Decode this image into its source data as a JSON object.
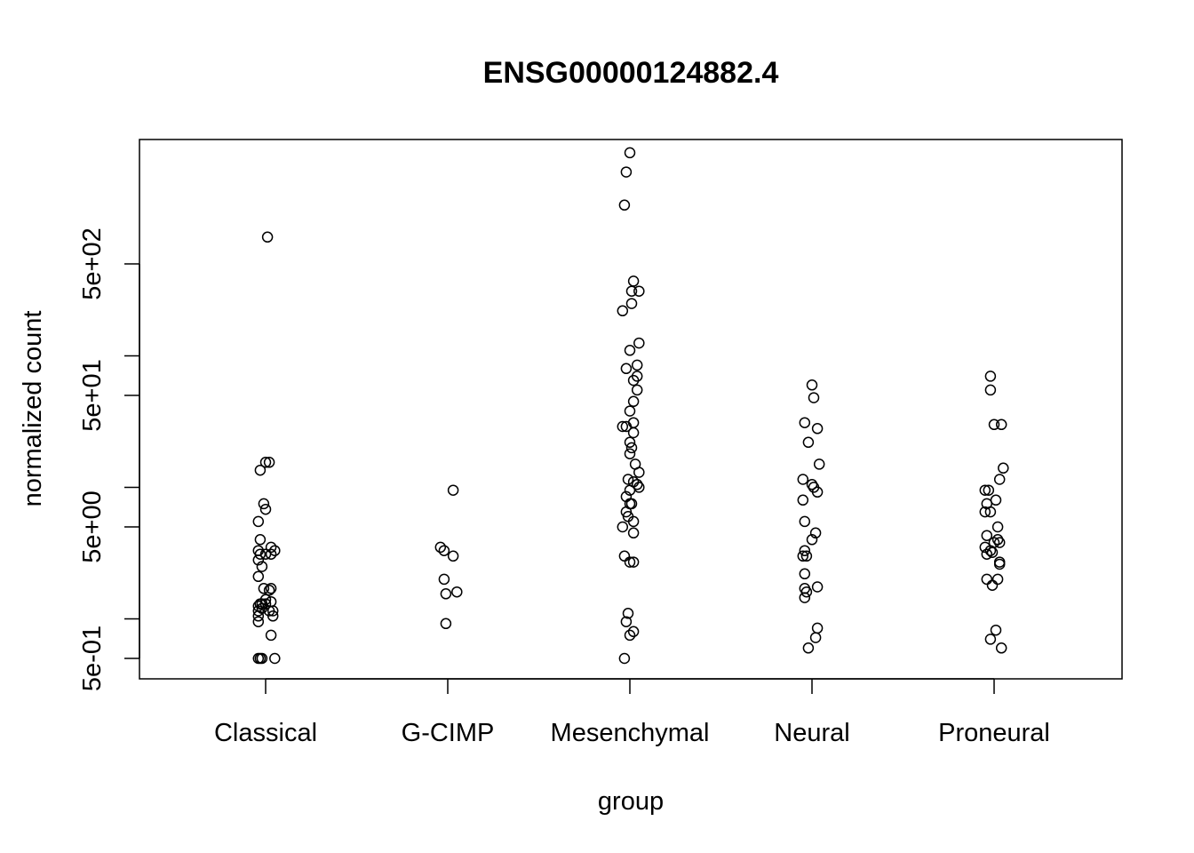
{
  "chart_data": {
    "type": "scatter",
    "title": "ENSG00000124882.4",
    "xlabel": "group",
    "ylabel": "normalized count",
    "categories": [
      "Classical",
      "G-CIMP",
      "Mesenchymal",
      "Neural",
      "Proneural"
    ],
    "y_scale": "log",
    "ylim": [
      0.4,
      4000
    ],
    "y_ticks": [
      0.5,
      5,
      50,
      500
    ],
    "y_tick_labels": [
      "5e-01",
      "5e+00",
      "5e+01",
      "5e+02"
    ],
    "grid": false,
    "legend": "none",
    "marker": "open-circle",
    "series": [
      {
        "category": "Classical",
        "points": [
          {
            "x": 0.01,
            "y": 800
          },
          {
            "x": 0.0,
            "y": 15.5
          },
          {
            "x": 0.02,
            "y": 15.5
          },
          {
            "x": -0.03,
            "y": 13.5
          },
          {
            "x": -0.01,
            "y": 7.5
          },
          {
            "x": 0.0,
            "y": 6.8
          },
          {
            "x": -0.04,
            "y": 5.5
          },
          {
            "x": -0.03,
            "y": 4.0
          },
          {
            "x": 0.03,
            "y": 3.5
          },
          {
            "x": -0.04,
            "y": 3.3
          },
          {
            "x": 0.05,
            "y": 3.3
          },
          {
            "x": -0.03,
            "y": 3.1
          },
          {
            "x": 0.0,
            "y": 3.1
          },
          {
            "x": 0.03,
            "y": 3.1
          },
          {
            "x": -0.04,
            "y": 2.8
          },
          {
            "x": -0.02,
            "y": 2.5
          },
          {
            "x": -0.04,
            "y": 2.1
          },
          {
            "x": -0.01,
            "y": 1.7
          },
          {
            "x": 0.02,
            "y": 1.65
          },
          {
            "x": 0.03,
            "y": 1.7
          },
          {
            "x": -0.03,
            "y": 1.3
          },
          {
            "x": -0.02,
            "y": 1.3
          },
          {
            "x": 0.0,
            "y": 1.3
          },
          {
            "x": -0.04,
            "y": 1.25
          },
          {
            "x": 0.03,
            "y": 1.35
          },
          {
            "x": 0.0,
            "y": 1.4
          },
          {
            "x": -0.02,
            "y": 1.2
          },
          {
            "x": 0.04,
            "y": 1.15
          },
          {
            "x": -0.04,
            "y": 1.15
          },
          {
            "x": 0.02,
            "y": 1.15
          },
          {
            "x": -0.04,
            "y": 1.05
          },
          {
            "x": 0.04,
            "y": 1.05
          },
          {
            "x": -0.04,
            "y": 0.95
          },
          {
            "x": 0.03,
            "y": 0.75
          },
          {
            "x": -0.04,
            "y": 0.5
          },
          {
            "x": -0.03,
            "y": 0.5
          },
          {
            "x": -0.02,
            "y": 0.5
          },
          {
            "x": 0.05,
            "y": 0.5
          }
        ]
      },
      {
        "category": "G-CIMP",
        "points": [
          {
            "x": 0.03,
            "y": 9.5
          },
          {
            "x": -0.04,
            "y": 3.5
          },
          {
            "x": -0.02,
            "y": 3.3
          },
          {
            "x": 0.03,
            "y": 3.0
          },
          {
            "x": -0.02,
            "y": 2.0
          },
          {
            "x": 0.05,
            "y": 1.6
          },
          {
            "x": -0.01,
            "y": 1.55
          },
          {
            "x": -0.01,
            "y": 0.92
          }
        ]
      },
      {
        "category": "Mesenchymal",
        "points": [
          {
            "x": 0.0,
            "y": 3500
          },
          {
            "x": -0.02,
            "y": 2500
          },
          {
            "x": -0.03,
            "y": 1400
          },
          {
            "x": 0.02,
            "y": 370
          },
          {
            "x": 0.05,
            "y": 310
          },
          {
            "x": 0.01,
            "y": 310
          },
          {
            "x": 0.01,
            "y": 250
          },
          {
            "x": -0.04,
            "y": 220
          },
          {
            "x": 0.05,
            "y": 125
          },
          {
            "x": 0.0,
            "y": 110
          },
          {
            "x": 0.04,
            "y": 85
          },
          {
            "x": -0.02,
            "y": 80
          },
          {
            "x": 0.04,
            "y": 70
          },
          {
            "x": 0.02,
            "y": 65
          },
          {
            "x": 0.04,
            "y": 55
          },
          {
            "x": 0.02,
            "y": 45
          },
          {
            "x": 0.0,
            "y": 38
          },
          {
            "x": 0.02,
            "y": 31
          },
          {
            "x": -0.04,
            "y": 29
          },
          {
            "x": -0.02,
            "y": 29
          },
          {
            "x": 0.02,
            "y": 26
          },
          {
            "x": 0.0,
            "y": 22
          },
          {
            "x": 0.01,
            "y": 20
          },
          {
            "x": 0.0,
            "y": 18
          },
          {
            "x": 0.03,
            "y": 15
          },
          {
            "x": 0.05,
            "y": 13
          },
          {
            "x": -0.01,
            "y": 11.5
          },
          {
            "x": 0.02,
            "y": 11
          },
          {
            "x": 0.04,
            "y": 10.5
          },
          {
            "x": 0.05,
            "y": 10
          },
          {
            "x": 0.0,
            "y": 9.5
          },
          {
            "x": -0.02,
            "y": 8.5
          },
          {
            "x": 0.01,
            "y": 7.5
          },
          {
            "x": 0.0,
            "y": 7.5
          },
          {
            "x": -0.02,
            "y": 6.5
          },
          {
            "x": -0.01,
            "y": 6.0
          },
          {
            "x": 0.02,
            "y": 5.5
          },
          {
            "x": -0.04,
            "y": 5.0
          },
          {
            "x": 0.02,
            "y": 4.5
          },
          {
            "x": -0.03,
            "y": 3.0
          },
          {
            "x": 0.0,
            "y": 2.7
          },
          {
            "x": 0.02,
            "y": 2.7
          },
          {
            "x": -0.01,
            "y": 1.1
          },
          {
            "x": -0.02,
            "y": 0.95
          },
          {
            "x": 0.02,
            "y": 0.8
          },
          {
            "x": 0.0,
            "y": 0.75
          },
          {
            "x": -0.03,
            "y": 0.5
          }
        ]
      },
      {
        "category": "Neural",
        "points": [
          {
            "x": 0.0,
            "y": 60
          },
          {
            "x": 0.01,
            "y": 48
          },
          {
            "x": -0.04,
            "y": 31
          },
          {
            "x": 0.03,
            "y": 28
          },
          {
            "x": -0.02,
            "y": 22
          },
          {
            "x": 0.04,
            "y": 15
          },
          {
            "x": -0.05,
            "y": 11.5
          },
          {
            "x": 0.0,
            "y": 10.5
          },
          {
            "x": 0.01,
            "y": 10
          },
          {
            "x": 0.03,
            "y": 9.2
          },
          {
            "x": -0.05,
            "y": 8.0
          },
          {
            "x": -0.04,
            "y": 5.5
          },
          {
            "x": 0.02,
            "y": 4.5
          },
          {
            "x": 0.0,
            "y": 4.0
          },
          {
            "x": -0.04,
            "y": 3.3
          },
          {
            "x": -0.05,
            "y": 3.0
          },
          {
            "x": -0.03,
            "y": 3.0
          },
          {
            "x": -0.04,
            "y": 2.2
          },
          {
            "x": -0.04,
            "y": 1.7
          },
          {
            "x": 0.03,
            "y": 1.75
          },
          {
            "x": -0.03,
            "y": 1.6
          },
          {
            "x": -0.04,
            "y": 1.45
          },
          {
            "x": 0.03,
            "y": 0.85
          },
          {
            "x": 0.02,
            "y": 0.72
          },
          {
            "x": -0.02,
            "y": 0.6
          }
        ]
      },
      {
        "category": "Proneural",
        "points": [
          {
            "x": -0.02,
            "y": 70
          },
          {
            "x": -0.02,
            "y": 55
          },
          {
            "x": 0.0,
            "y": 30
          },
          {
            "x": 0.04,
            "y": 30
          },
          {
            "x": 0.05,
            "y": 14
          },
          {
            "x": 0.03,
            "y": 11.5
          },
          {
            "x": -0.05,
            "y": 9.5
          },
          {
            "x": -0.03,
            "y": 9.5
          },
          {
            "x": 0.01,
            "y": 8.0
          },
          {
            "x": -0.04,
            "y": 7.5
          },
          {
            "x": -0.05,
            "y": 6.5
          },
          {
            "x": -0.02,
            "y": 6.5
          },
          {
            "x": 0.02,
            "y": 5.0
          },
          {
            "x": -0.04,
            "y": 4.3
          },
          {
            "x": 0.02,
            "y": 4.0
          },
          {
            "x": 0.0,
            "y": 3.8
          },
          {
            "x": 0.03,
            "y": 3.8
          },
          {
            "x": -0.05,
            "y": 3.5
          },
          {
            "x": -0.02,
            "y": 3.3
          },
          {
            "x": -0.04,
            "y": 3.1
          },
          {
            "x": -0.01,
            "y": 3.2
          },
          {
            "x": 0.03,
            "y": 2.7
          },
          {
            "x": 0.03,
            "y": 2.6
          },
          {
            "x": -0.04,
            "y": 2.0
          },
          {
            "x": 0.02,
            "y": 2.0
          },
          {
            "x": -0.01,
            "y": 1.8
          },
          {
            "x": 0.01,
            "y": 0.82
          },
          {
            "x": -0.02,
            "y": 0.7
          },
          {
            "x": 0.04,
            "y": 0.6
          }
        ]
      }
    ]
  }
}
